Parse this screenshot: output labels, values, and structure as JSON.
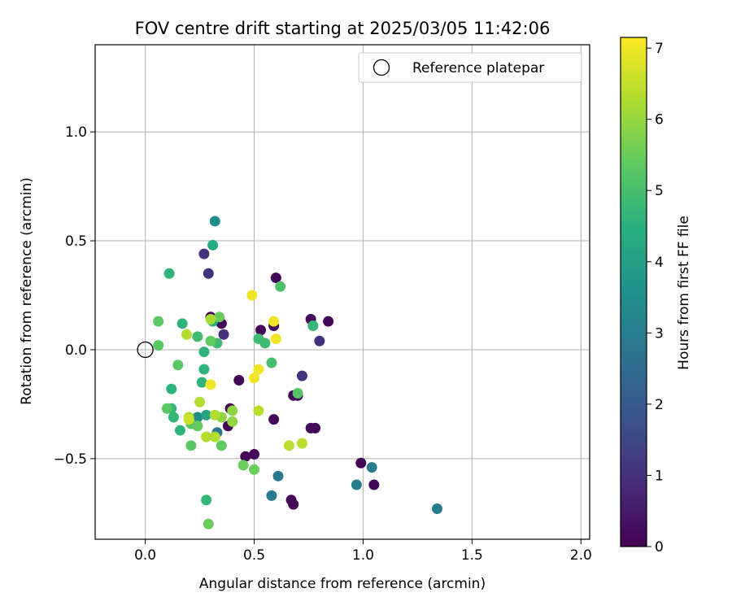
{
  "chart_data": {
    "type": "scatter",
    "title": "FOV centre drift starting at 2025/03/05 11:42:06",
    "xlabel": "Angular distance from reference (arcmin)",
    "ylabel": "Rotation from reference (arcmin)",
    "xlim": [
      -0.23,
      2.04
    ],
    "ylim": [
      -0.87,
      1.4
    ],
    "xticks": [
      0.0,
      0.5,
      1.0,
      1.5,
      2.0
    ],
    "xtick_labels": [
      "0.0",
      "0.5",
      "1.0",
      "1.5",
      "2.0"
    ],
    "yticks": [
      -0.5,
      0.0,
      0.5,
      1.0
    ],
    "ytick_labels": [
      "−0.5",
      "0.0",
      "0.5",
      "1.0"
    ],
    "grid": true,
    "legend": {
      "placement": "top-right",
      "entries": [
        {
          "label": "Reference platepar",
          "marker": "open-circle"
        }
      ]
    },
    "reference_point": {
      "x": 0.0,
      "y": 0.0
    },
    "colorbar": {
      "label": "Hours from first FF file",
      "range": [
        0,
        7.15
      ],
      "ticks": [
        0,
        1,
        2,
        3,
        4,
        5,
        6,
        7
      ],
      "tick_labels": [
        "0",
        "1",
        "2",
        "3",
        "4",
        "5",
        "6",
        "7"
      ],
      "colormap": "viridis"
    },
    "points": [
      {
        "x": 0.3,
        "y": 0.15,
        "c": 0.1
      },
      {
        "x": 0.35,
        "y": 0.12,
        "c": 0.1
      },
      {
        "x": 0.53,
        "y": 0.09,
        "c": 0.1
      },
      {
        "x": 0.6,
        "y": 0.33,
        "c": 0.1
      },
      {
        "x": 0.59,
        "y": 0.11,
        "c": 0.1
      },
      {
        "x": 0.76,
        "y": 0.14,
        "c": 0.1
      },
      {
        "x": 0.84,
        "y": 0.13,
        "c": 0.1
      },
      {
        "x": 0.43,
        "y": -0.14,
        "c": 0.1
      },
      {
        "x": 0.39,
        "y": -0.27,
        "c": 0.1
      },
      {
        "x": 0.38,
        "y": -0.35,
        "c": 0.1
      },
      {
        "x": 0.59,
        "y": -0.32,
        "c": 0.1
      },
      {
        "x": 0.68,
        "y": -0.21,
        "c": 0.1
      },
      {
        "x": 0.7,
        "y": -0.21,
        "c": 0.1
      },
      {
        "x": 0.76,
        "y": -0.36,
        "c": 0.1
      },
      {
        "x": 0.78,
        "y": -0.36,
        "c": 0.1
      },
      {
        "x": 0.46,
        "y": -0.49,
        "c": 0.1
      },
      {
        "x": 0.5,
        "y": -0.48,
        "c": 0.1
      },
      {
        "x": 0.67,
        "y": -0.69,
        "c": 0.1
      },
      {
        "x": 0.68,
        "y": -0.71,
        "c": 0.1
      },
      {
        "x": 0.99,
        "y": -0.52,
        "c": 0.1
      },
      {
        "x": 1.05,
        "y": -0.62,
        "c": 0.1
      },
      {
        "x": 0.27,
        "y": 0.44,
        "c": 1.0
      },
      {
        "x": 0.29,
        "y": 0.35,
        "c": 1.0
      },
      {
        "x": 0.36,
        "y": 0.07,
        "c": 1.0
      },
      {
        "x": 0.72,
        "y": -0.12,
        "c": 1.0
      },
      {
        "x": 0.8,
        "y": 0.04,
        "c": 1.0
      },
      {
        "x": 0.33,
        "y": -0.38,
        "c": 2.8
      },
      {
        "x": 0.61,
        "y": -0.58,
        "c": 2.9
      },
      {
        "x": 0.58,
        "y": -0.67,
        "c": 2.9
      },
      {
        "x": 0.97,
        "y": -0.62,
        "c": 3.0
      },
      {
        "x": 1.04,
        "y": -0.54,
        "c": 3.0
      },
      {
        "x": 1.34,
        "y": -0.73,
        "c": 3.0
      },
      {
        "x": 0.32,
        "y": 0.59,
        "c": 3.5
      },
      {
        "x": 0.24,
        "y": -0.31,
        "c": 3.5
      },
      {
        "x": 0.31,
        "y": 0.48,
        "c": 4.4
      },
      {
        "x": 0.28,
        "y": -0.3,
        "c": 4.2
      },
      {
        "x": 0.31,
        "y": 0.13,
        "c": 4.5
      },
      {
        "x": 0.11,
        "y": 0.35,
        "c": 4.6
      },
      {
        "x": 0.17,
        "y": 0.12,
        "c": 4.6
      },
      {
        "x": 0.26,
        "y": -0.15,
        "c": 4.6
      },
      {
        "x": 0.27,
        "y": -0.09,
        "c": 4.6
      },
      {
        "x": 0.27,
        "y": -0.01,
        "c": 4.6
      },
      {
        "x": 0.12,
        "y": -0.18,
        "c": 4.6
      },
      {
        "x": 0.12,
        "y": -0.27,
        "c": 4.7
      },
      {
        "x": 0.13,
        "y": -0.31,
        "c": 4.7
      },
      {
        "x": 0.16,
        "y": -0.37,
        "c": 4.6
      },
      {
        "x": 0.28,
        "y": -0.69,
        "c": 4.7
      },
      {
        "x": 0.77,
        "y": 0.11,
        "c": 4.7
      },
      {
        "x": 0.24,
        "y": 0.06,
        "c": 4.9
      },
      {
        "x": 0.33,
        "y": 0.03,
        "c": 4.9
      },
      {
        "x": 0.52,
        "y": 0.05,
        "c": 4.9
      },
      {
        "x": 0.55,
        "y": 0.03,
        "c": 4.9
      },
      {
        "x": 0.58,
        "y": -0.06,
        "c": 5.0
      },
      {
        "x": 0.62,
        "y": 0.29,
        "c": 5.1
      },
      {
        "x": 0.7,
        "y": -0.2,
        "c": 5.2
      },
      {
        "x": 0.06,
        "y": 0.13,
        "c": 5.3
      },
      {
        "x": 0.06,
        "y": 0.02,
        "c": 5.3
      },
      {
        "x": 0.15,
        "y": -0.07,
        "c": 5.3
      },
      {
        "x": 0.1,
        "y": -0.27,
        "c": 5.3
      },
      {
        "x": 0.21,
        "y": -0.34,
        "c": 5.3
      },
      {
        "x": 0.21,
        "y": -0.44,
        "c": 5.3
      },
      {
        "x": 0.24,
        "y": -0.35,
        "c": 5.4
      },
      {
        "x": 0.35,
        "y": -0.44,
        "c": 5.4
      },
      {
        "x": 0.3,
        "y": 0.04,
        "c": 5.4
      },
      {
        "x": 0.34,
        "y": 0.15,
        "c": 5.5
      },
      {
        "x": 0.29,
        "y": -0.8,
        "c": 5.5
      },
      {
        "x": 0.5,
        "y": -0.55,
        "c": 5.5
      },
      {
        "x": 0.45,
        "y": -0.53,
        "c": 5.5
      },
      {
        "x": 0.35,
        "y": -0.31,
        "c": 5.9
      },
      {
        "x": 0.4,
        "y": -0.28,
        "c": 5.9
      },
      {
        "x": 0.4,
        "y": -0.33,
        "c": 5.9
      },
      {
        "x": 0.3,
        "y": 0.14,
        "c": 6.2
      },
      {
        "x": 0.19,
        "y": 0.07,
        "c": 6.3
      },
      {
        "x": 0.25,
        "y": -0.24,
        "c": 6.3
      },
      {
        "x": 0.2,
        "y": -0.31,
        "c": 6.3
      },
      {
        "x": 0.28,
        "y": -0.4,
        "c": 6.3
      },
      {
        "x": 0.32,
        "y": -0.4,
        "c": 6.3
      },
      {
        "x": 0.32,
        "y": -0.3,
        "c": 6.3
      },
      {
        "x": 0.52,
        "y": -0.28,
        "c": 6.4
      },
      {
        "x": 0.66,
        "y": -0.44,
        "c": 6.4
      },
      {
        "x": 0.72,
        "y": -0.43,
        "c": 6.4
      },
      {
        "x": 0.2,
        "y": -0.32,
        "c": 6.6
      },
      {
        "x": 0.49,
        "y": 0.25,
        "c": 7.0
      },
      {
        "x": 0.59,
        "y": 0.13,
        "c": 7.0
      },
      {
        "x": 0.6,
        "y": 0.05,
        "c": 7.0
      },
      {
        "x": 0.52,
        "y": -0.09,
        "c": 7.0
      },
      {
        "x": 0.5,
        "y": -0.13,
        "c": 7.0
      },
      {
        "x": 0.3,
        "y": -0.16,
        "c": 7.0
      }
    ]
  }
}
